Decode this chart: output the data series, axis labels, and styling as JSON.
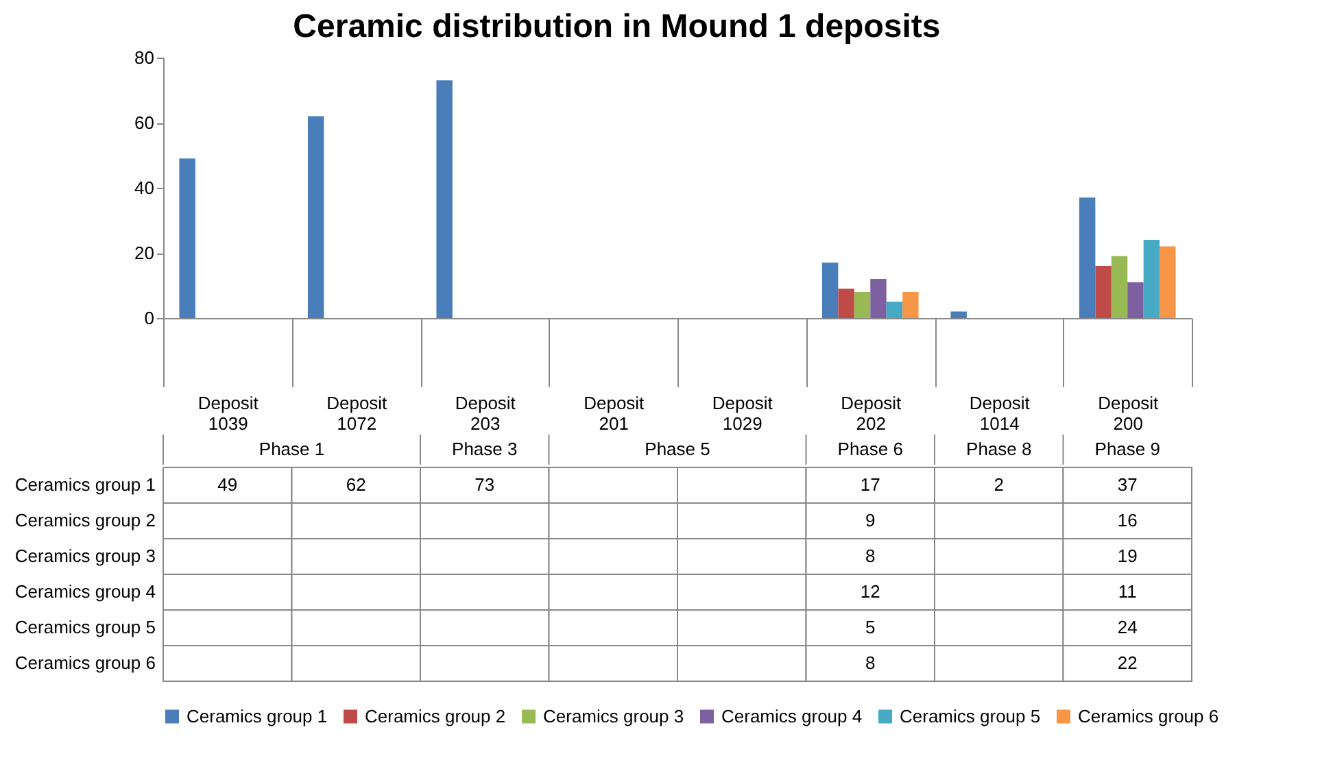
{
  "chart_data": {
    "type": "bar",
    "title": "Ceramic distribution in Mound 1 deposits",
    "categories": [
      "Deposit 1039",
      "Deposit 1072",
      "Deposit 203",
      "Deposit 201",
      "Deposit 1029",
      "Deposit 202",
      "Deposit 1014",
      "Deposit 200"
    ],
    "series": [
      {
        "name": "Ceramics group 1",
        "color": "#4a7ebb",
        "values": [
          49,
          62,
          73,
          null,
          null,
          17,
          2,
          37
        ]
      },
      {
        "name": "Ceramics group 2",
        "color": "#be4b48",
        "values": [
          null,
          null,
          null,
          null,
          null,
          9,
          null,
          16
        ]
      },
      {
        "name": "Ceramics group 3",
        "color": "#98b954",
        "values": [
          null,
          null,
          null,
          null,
          null,
          8,
          null,
          19
        ]
      },
      {
        "name": "Ceramics group 4",
        "color": "#7d60a0",
        "values": [
          null,
          null,
          null,
          null,
          null,
          12,
          null,
          11
        ]
      },
      {
        "name": "Ceramics group 5",
        "color": "#46aac5",
        "values": [
          null,
          null,
          null,
          null,
          null,
          5,
          null,
          24
        ]
      },
      {
        "name": "Ceramics group 6",
        "color": "#f79646",
        "values": [
          null,
          null,
          null,
          null,
          null,
          8,
          null,
          22
        ]
      }
    ],
    "annotations": [
      "Phase 1",
      "Phase 3",
      "Phase 5",
      "Phase 6",
      "Phase 8",
      "Phase 9"
    ],
    "ylim": [
      0,
      80
    ],
    "yticks": [
      0,
      20,
      40,
      60,
      80
    ],
    "grid": false,
    "legend": "bottom",
    "data_labels": true
  }
}
